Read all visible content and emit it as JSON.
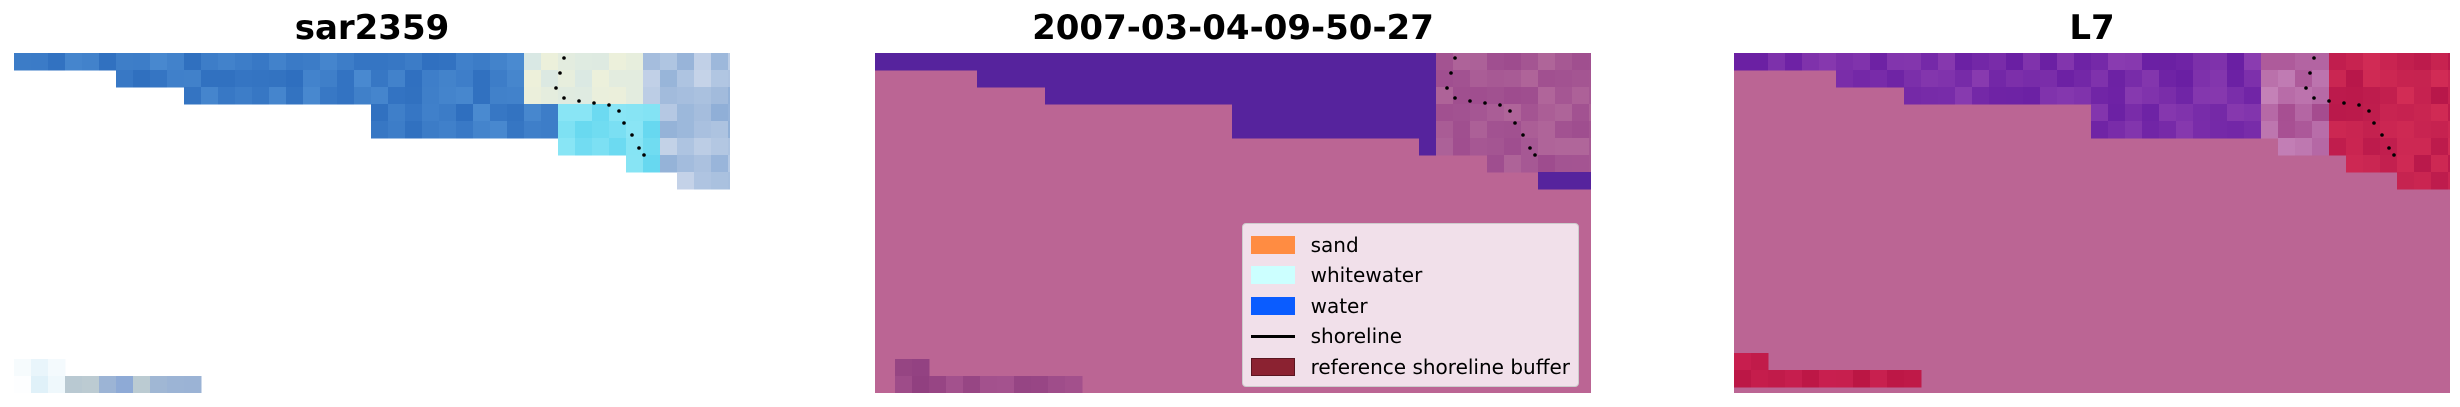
{
  "panels": [
    {
      "title": "sar2359",
      "kind": "rgb"
    },
    {
      "title": "2007-03-04-09-50-27",
      "kind": "classified"
    },
    {
      "title": "L7",
      "kind": "mndwi"
    }
  ],
  "legend": {
    "items": [
      {
        "label": "sand",
        "type": "patch",
        "color": "#ff8c42"
      },
      {
        "label": "whitewater",
        "type": "patch",
        "color": "#ccffff"
      },
      {
        "label": "water",
        "type": "patch",
        "color": "#0a5cff"
      },
      {
        "label": "shoreline",
        "type": "line",
        "color": "#000000"
      },
      {
        "label": "reference shoreline buffer",
        "type": "patch",
        "color": "#8b2231"
      }
    ]
  },
  "colors": {
    "buffer_mask": "#bb6594",
    "rgb_water": "#3a7cc7",
    "classified_water": "#56239d",
    "mndwi_high": "#c41a45"
  }
}
